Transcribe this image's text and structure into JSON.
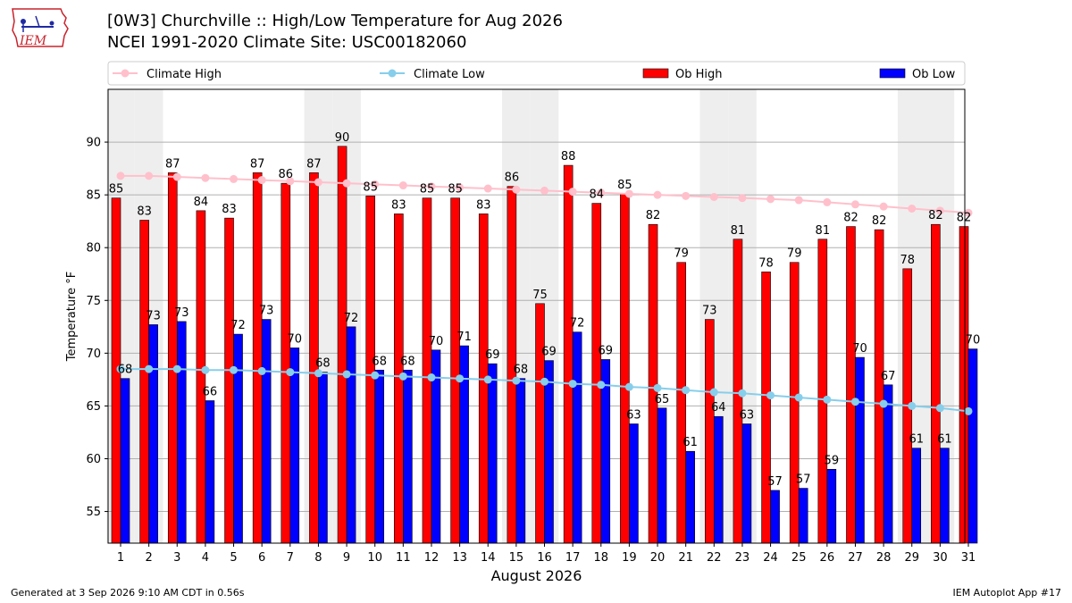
{
  "header": {
    "logo_text": "IEM",
    "title_line1": "[0W3] Churchville :: High/Low Temperature for Aug 2026",
    "title_line2": "NCEI 1991-2020 Climate Site: USC00182060"
  },
  "footer": {
    "generated": "Generated at 3 Sep 2026 9:10 AM CDT in 0.56s",
    "app": "IEM Autoplot App #17"
  },
  "colors": {
    "ob_high": "#ff0000",
    "ob_low": "#0000ff",
    "climate_high": "#ffc0cb",
    "climate_low": "#87ceeb",
    "weekend_band": "#eeeeee"
  },
  "chart_data": {
    "type": "bar",
    "xlabel": "August 2026",
    "ylabel": "Temperature °F",
    "ylim": [
      52,
      95
    ],
    "yticks": [
      55,
      60,
      65,
      70,
      75,
      80,
      85,
      90
    ],
    "grid": true,
    "legend_placement": "top",
    "categories": [
      "1",
      "2",
      "3",
      "4",
      "5",
      "6",
      "7",
      "8",
      "9",
      "10",
      "11",
      "12",
      "13",
      "14",
      "15",
      "16",
      "17",
      "18",
      "19",
      "20",
      "21",
      "22",
      "23",
      "24",
      "25",
      "26",
      "27",
      "28",
      "29",
      "30",
      "31"
    ],
    "shaded_days": [
      1,
      2,
      8,
      9,
      15,
      16,
      22,
      23,
      29,
      30
    ],
    "series": [
      {
        "name": "Climate High",
        "kind": "line",
        "values": [
          86.8,
          86.8,
          86.7,
          86.6,
          86.5,
          86.4,
          86.3,
          86.2,
          86.1,
          86.0,
          85.9,
          85.8,
          85.7,
          85.6,
          85.5,
          85.4,
          85.3,
          85.2,
          85.1,
          85.0,
          84.9,
          84.8,
          84.7,
          84.6,
          84.5,
          84.3,
          84.1,
          83.9,
          83.7,
          83.5,
          83.3
        ]
      },
      {
        "name": "Climate Low",
        "kind": "line",
        "values": [
          68.5,
          68.5,
          68.5,
          68.4,
          68.4,
          68.3,
          68.2,
          68.1,
          68.0,
          67.9,
          67.8,
          67.7,
          67.6,
          67.5,
          67.4,
          67.3,
          67.1,
          67.0,
          66.8,
          66.7,
          66.5,
          66.3,
          66.2,
          66.0,
          65.8,
          65.6,
          65.4,
          65.2,
          65.0,
          64.8,
          64.5
        ]
      },
      {
        "name": "Ob High",
        "kind": "bar",
        "label_suffix_values": true,
        "values": [
          85,
          83,
          87,
          84,
          83,
          87,
          86,
          87,
          90,
          85,
          83,
          85,
          85,
          83,
          86,
          75,
          88,
          84,
          85,
          82,
          79,
          73,
          81,
          78,
          79,
          81,
          82,
          82,
          78,
          82,
          82
        ],
        "bar_values": [
          84.7,
          82.6,
          87.1,
          83.5,
          82.8,
          87.1,
          86.1,
          87.1,
          89.6,
          84.9,
          83.2,
          84.7,
          84.7,
          83.2,
          85.8,
          74.7,
          87.8,
          84.2,
          85.1,
          82.2,
          78.6,
          73.2,
          80.8,
          77.7,
          78.6,
          80.8,
          82.0,
          81.7,
          78.0,
          82.2,
          82.0
        ]
      },
      {
        "name": "Ob Low",
        "kind": "bar",
        "values": [
          68,
          73,
          73,
          66,
          72,
          73,
          70,
          68,
          72,
          68,
          68,
          70,
          71,
          69,
          68,
          69,
          72,
          69,
          63,
          65,
          61,
          64,
          63,
          57,
          57,
          59,
          70,
          67,
          61,
          61,
          70
        ],
        "bar_values": [
          67.6,
          72.7,
          73.0,
          65.5,
          71.8,
          73.2,
          70.5,
          68.2,
          72.5,
          68.4,
          68.4,
          70.3,
          70.7,
          69.0,
          67.6,
          69.3,
          72.0,
          69.4,
          63.3,
          64.8,
          60.7,
          64.0,
          63.3,
          57.0,
          57.2,
          59.0,
          69.6,
          67.0,
          61.0,
          61.0,
          70.4
        ]
      }
    ]
  }
}
